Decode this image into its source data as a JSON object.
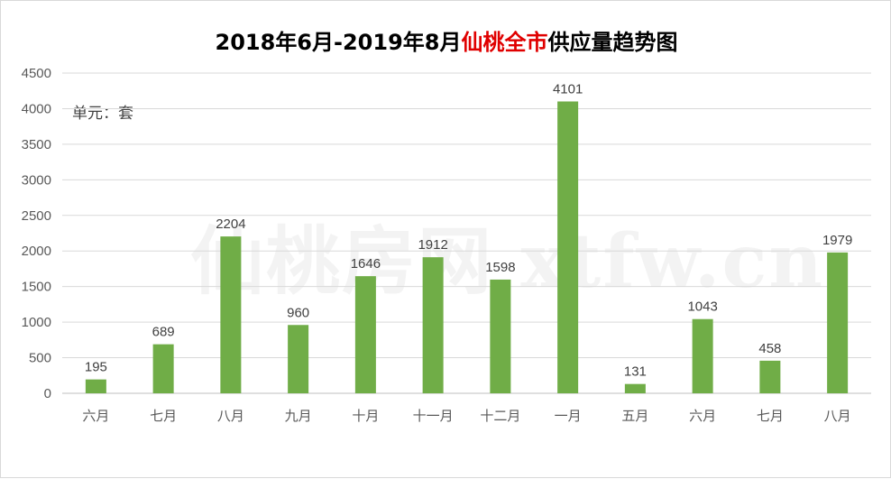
{
  "chart_data": {
    "type": "bar",
    "title_prefix": "2018年6月-2019年8月",
    "title_highlight": "仙桃全市",
    "title_suffix": "供应量趋势图",
    "unit": "单元：套",
    "watermark": "仙桃房网 xtfw.cn",
    "categories": [
      "六月",
      "七月",
      "八月",
      "九月",
      "十月",
      "十一月",
      "十二月",
      "一月",
      "五月",
      "六月",
      "七月",
      "八月"
    ],
    "values": [
      195,
      689,
      2204,
      960,
      1646,
      1912,
      1598,
      4101,
      131,
      1043,
      458,
      1979
    ],
    "yticks": [
      0,
      500,
      1000,
      1500,
      2000,
      2500,
      3000,
      3500,
      4000,
      4500
    ],
    "ylim": [
      0,
      4500
    ],
    "grid": true,
    "bar_color": "#70ad47",
    "highlight_color": "#e00000"
  }
}
